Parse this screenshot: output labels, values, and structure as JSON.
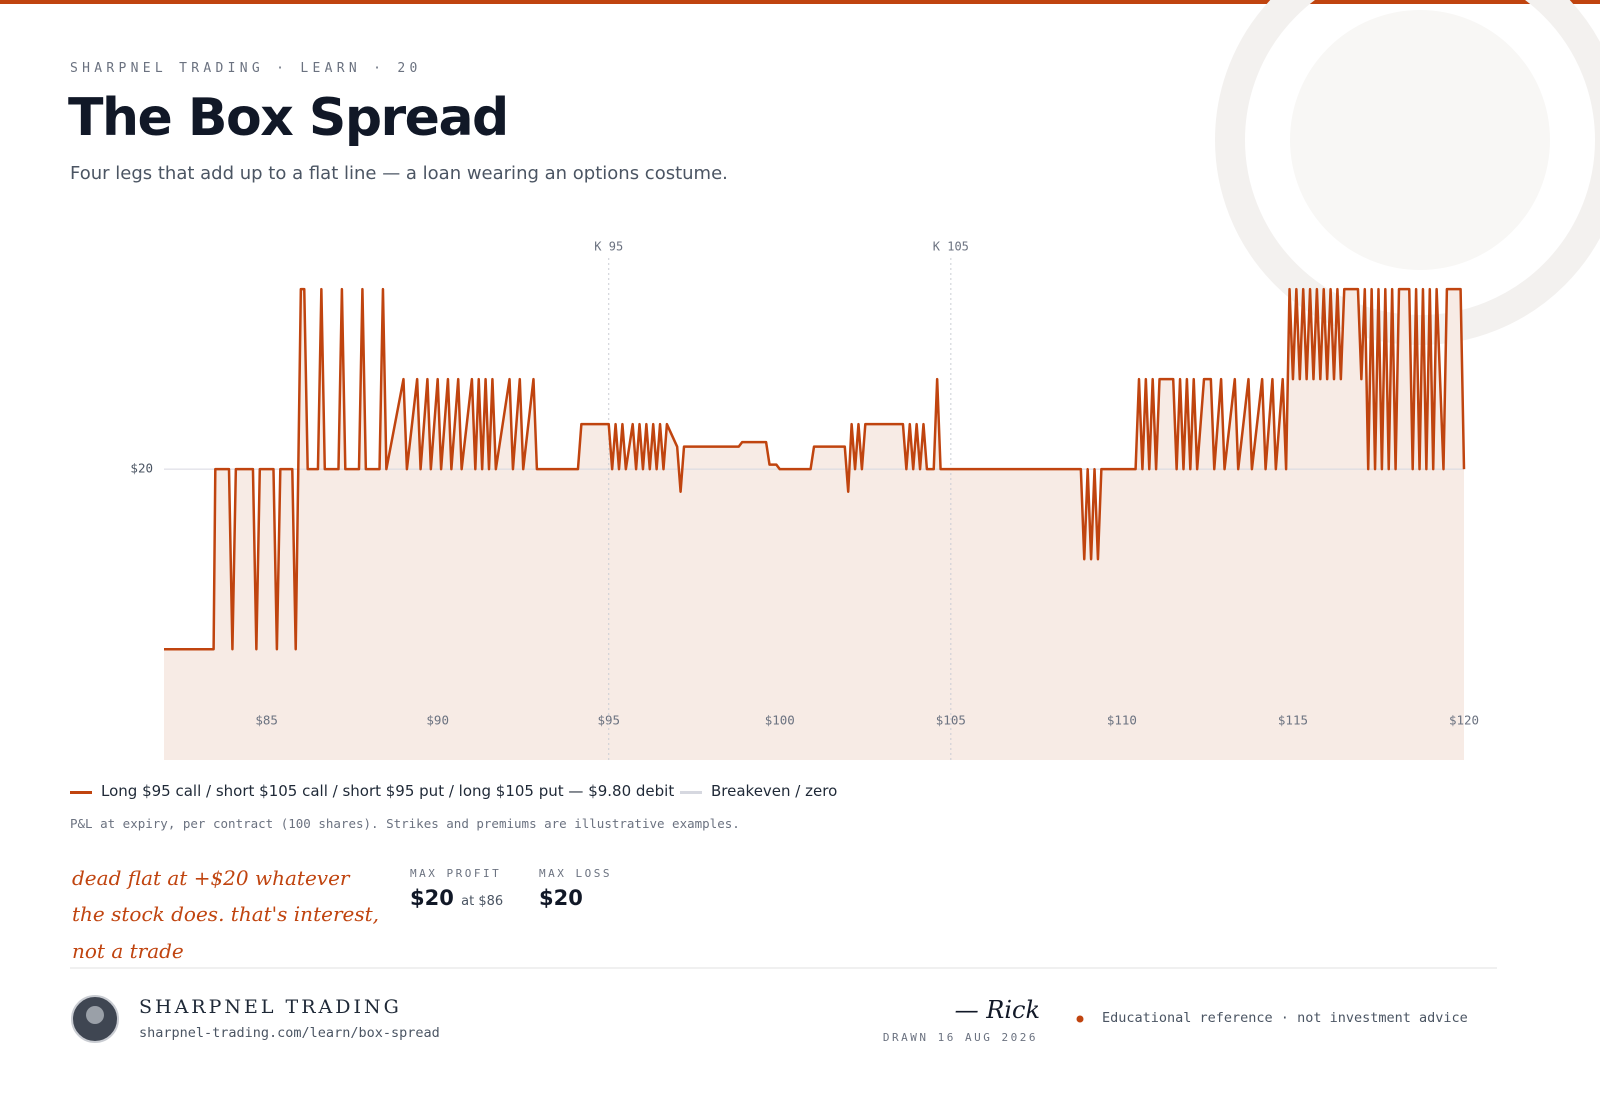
{
  "header": {
    "eyebrow": "SHARPNEL TRADING · LEARN · 20",
    "title": "The Box Spread",
    "subtitle": "Four legs that add up to a flat line — a loan wearing an options costume."
  },
  "chart_data": {
    "type": "line",
    "xlim": [
      82,
      120
    ],
    "ylim": [
      19.9677,
      20.0249
    ],
    "xticks": [
      {
        "value": 85,
        "label": "$85"
      },
      {
        "value": 90,
        "label": "$90"
      },
      {
        "value": 95,
        "label": "$95"
      },
      {
        "value": 100,
        "label": "$100"
      },
      {
        "value": 105,
        "label": "$105"
      },
      {
        "value": 110,
        "label": "$110"
      },
      {
        "value": 115,
        "label": "$115"
      },
      {
        "value": 120,
        "label": "$120"
      }
    ],
    "yticks": [
      {
        "value": 20,
        "label": "$20"
      }
    ],
    "markers": [
      {
        "x": 95,
        "label": "K 95"
      },
      {
        "x": 105,
        "label": "K 105"
      }
    ],
    "reference_line": {
      "name": "Breakeven / zero",
      "value": 20,
      "color": "#d6d8e0"
    },
    "area_fill": "#f7ebe5",
    "series": [
      {
        "name": "Long $95 call / short $105 call / short $95 put / long $105 put — $9.80 debit",
        "color": "#c0440f",
        "x": [
          82,
          83.45,
          83.5,
          83.9,
          84.0,
          84.1,
          84.6,
          84.7,
          84.8,
          85.2,
          85.3,
          85.4,
          85.75,
          85.85,
          86.0,
          86.1,
          86.2,
          86.5,
          86.6,
          86.7,
          87.1,
          87.2,
          87.3,
          87.7,
          87.8,
          87.9,
          88.3,
          88.4,
          88.5,
          89.0,
          89.1,
          89.4,
          89.5,
          89.7,
          89.8,
          90.0,
          90.1,
          90.3,
          90.4,
          90.6,
          90.7,
          91.0,
          91.1,
          91.2,
          91.3,
          91.4,
          91.5,
          91.6,
          91.7,
          92.1,
          92.2,
          92.4,
          92.5,
          92.8,
          92.9,
          94.1,
          94.2,
          95.0,
          95.1,
          95.2,
          95.3,
          95.4,
          95.5,
          95.7,
          95.8,
          95.9,
          96.0,
          96.1,
          96.2,
          96.3,
          96.4,
          96.5,
          96.6,
          96.7,
          97.0,
          97.1,
          97.2,
          98.8,
          98.9,
          99.6,
          99.7,
          99.9,
          100.0,
          100.9,
          101.0,
          101.9,
          102.0,
          102.1,
          102.2,
          102.3,
          102.4,
          102.5,
          103.6,
          103.7,
          103.8,
          103.9,
          104.0,
          104.1,
          104.2,
          104.3,
          104.5,
          104.6,
          104.7,
          108.8,
          108.9,
          109.0,
          109.1,
          109.2,
          109.3,
          109.4,
          110.4,
          110.5,
          110.6,
          110.7,
          110.8,
          110.9,
          111.0,
          111.1,
          111.5,
          111.6,
          111.7,
          111.8,
          111.9,
          112.0,
          112.1,
          112.2,
          112.4,
          112.6,
          112.7,
          112.9,
          113.0,
          113.3,
          113.4,
          113.7,
          113.8,
          114.1,
          114.2,
          114.4,
          114.5,
          114.7,
          114.8,
          114.9,
          115.0,
          115.1,
          115.2,
          115.3,
          115.4,
          115.5,
          115.6,
          115.7,
          115.8,
          115.9,
          116.0,
          116.1,
          116.2,
          116.3,
          116.4,
          116.5,
          116.9,
          117.0,
          117.1,
          117.2,
          117.3,
          117.4,
          117.5,
          117.6,
          117.7,
          117.8,
          117.9,
          118.0,
          118.1,
          118.4,
          118.5,
          118.6,
          118.7,
          118.8,
          118.9,
          119.0,
          119.1,
          119.2,
          119.4,
          119.5,
          119.9,
          120.0
        ],
        "values": [
          19.98,
          19.98,
          20,
          20,
          19.98,
          20,
          20,
          19.98,
          20,
          20,
          19.98,
          20,
          20,
          19.98,
          20.02,
          20.02,
          20,
          20,
          20.02,
          20,
          20,
          20.02,
          20,
          20,
          20.02,
          20,
          20,
          20.02,
          20,
          20.01,
          20,
          20.01,
          20,
          20.01,
          20,
          20.01,
          20,
          20.01,
          20,
          20.01,
          20,
          20.01,
          20,
          20.01,
          20,
          20.01,
          20,
          20.01,
          20,
          20.01,
          20,
          20.01,
          20,
          20.01,
          20,
          20,
          20.005,
          20.005,
          20,
          20.005,
          20,
          20.005,
          20,
          20.005,
          20,
          20.005,
          20,
          20.005,
          20,
          20.005,
          20,
          20.005,
          20,
          20.005,
          20.0025,
          19.9975,
          20.0025,
          20.0025,
          20.003,
          20.003,
          20.0005,
          20.0005,
          20,
          20,
          20.0025,
          20.0025,
          19.9975,
          20.005,
          20,
          20.005,
          20,
          20.005,
          20.005,
          20,
          20.005,
          20,
          20.005,
          20,
          20.005,
          20,
          20,
          20.01,
          20,
          20,
          19.99,
          20,
          19.99,
          20,
          19.99,
          20,
          20,
          20.01,
          20,
          20.01,
          20,
          20.01,
          20,
          20.01,
          20.01,
          20,
          20.01,
          20,
          20.01,
          20,
          20.01,
          20,
          20.01,
          20.01,
          20,
          20.01,
          20,
          20.01,
          20,
          20.01,
          20,
          20.01,
          20,
          20.01,
          20,
          20.01,
          20,
          20.02,
          20.01,
          20.02,
          20.01,
          20.02,
          20.01,
          20.02,
          20.01,
          20.02,
          20.01,
          20.02,
          20.01,
          20.02,
          20.01,
          20.02,
          20.01,
          20.02,
          20.02,
          20.01,
          20.02,
          20,
          20.02,
          20,
          20.02,
          20,
          20.02,
          20,
          20.02,
          20,
          20.02,
          20.02,
          20,
          20.02,
          20,
          20.02,
          20,
          20.02,
          20,
          20.02,
          20,
          20.02,
          20.02,
          20
        ]
      }
    ]
  },
  "footnote": "P&L at expiry, per contract (100 shares). Strikes and premiums are illustrative examples.",
  "annotation": [
    "dead flat at +$20 whatever",
    "the stock does. that's interest,",
    "not a trade"
  ],
  "stats": [
    {
      "label": "MAX PROFIT",
      "value": "$20",
      "note": "at $86"
    },
    {
      "label": "MAX LOSS",
      "value": "$20"
    }
  ],
  "footer": {
    "brand": "SHARPNEL TRADING",
    "url": "sharpnel-trading.com/learn/box-spread",
    "signature": "— Rick",
    "drawn": "DRAWN 16 AUG 2026",
    "disclaimer": "Educational reference · not investment advice"
  }
}
